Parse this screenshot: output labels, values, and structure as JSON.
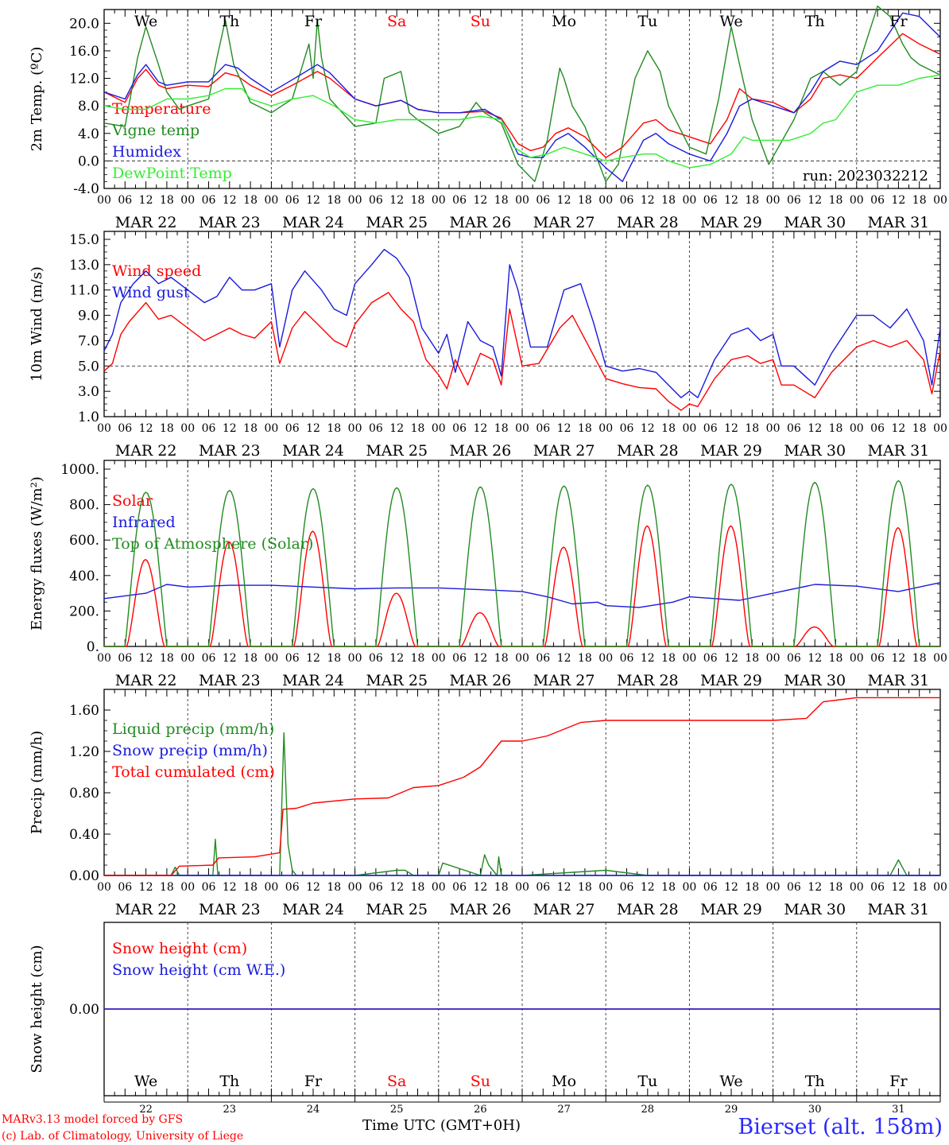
{
  "run_label": "run: 2023032212",
  "station": "Bierset (alt. 158m)",
  "credits": [
    "MARv3.13 model forced by GFS",
    "(c) Lab. of Climatology, University of Liege"
  ],
  "x_axis_title": "Time UTC (GMT+0H)",
  "weekdays": [
    "We",
    "Th",
    "Fr",
    "Sa",
    "Su",
    "Mo",
    "Tu",
    "We",
    "Th",
    "Fr"
  ],
  "weekend_color": "#ff0000",
  "day_numbers": [
    "22",
    "23",
    "24",
    "25",
    "26",
    "27",
    "28",
    "29",
    "30",
    "31"
  ],
  "date_labels": [
    "MAR 22",
    "MAR 23",
    "MAR 24",
    "MAR 25",
    "MAR 26",
    "MAR 27",
    "MAR 28",
    "MAR 29",
    "MAR 30",
    "MAR 31"
  ],
  "hour_ticks": [
    "00",
    "06",
    "12",
    "18"
  ],
  "chart_data": [
    {
      "type": "line",
      "ylabel": "2m Temp. (ºC)",
      "ylim": [
        -4,
        22
      ],
      "yticks": [
        "-4.0",
        "0.0",
        "4.0",
        "8.0",
        "12.0",
        "16.0",
        "20.0"
      ],
      "reference_line": 0,
      "grid": "dashed day separators",
      "legend_position": "left",
      "x_unit": "days since MAR 22 00 UTC",
      "series": [
        {
          "name": "Temperature",
          "color": "#ff0000",
          "x": [
            0,
            0.25,
            0.4,
            0.5,
            0.65,
            0.75,
            1,
            1.25,
            1.45,
            1.6,
            1.75,
            2,
            2.25,
            2.55,
            2.7,
            3,
            3.25,
            3.55,
            3.75,
            4,
            4.25,
            4.55,
            4.75,
            4.95,
            5.1,
            5.25,
            5.4,
            5.55,
            5.75,
            6,
            6.2,
            6.45,
            6.6,
            6.75,
            7,
            7.25,
            7.45,
            7.6,
            7.75,
            8,
            8.25,
            8.45,
            8.6,
            8.8,
            9,
            9.25,
            9.55,
            9.75,
            10
          ],
          "y": [
            10,
            8.5,
            12,
            13.3,
            11,
            10.5,
            11,
            10.8,
            12.8,
            12.3,
            11,
            9.5,
            11,
            13,
            12,
            9,
            8,
            8.8,
            7.5,
            7,
            7,
            7.2,
            6.2,
            2.5,
            1.5,
            2,
            4,
            4.8,
            3.5,
            0.5,
            2,
            5.5,
            6,
            4.5,
            3.5,
            2.5,
            6,
            10.5,
            9,
            8.5,
            7,
            9,
            12,
            12.5,
            12,
            15,
            18.5,
            17,
            15.5
          ]
        },
        {
          "name": "Vigne temp",
          "color": "#228b22",
          "x": [
            0,
            0.25,
            0.4,
            0.5,
            0.65,
            0.75,
            0.9,
            1,
            1.25,
            1.35,
            1.45,
            1.55,
            1.75,
            2,
            2.25,
            2.45,
            2.5,
            2.55,
            2.6,
            2.7,
            3,
            3.25,
            3.35,
            3.55,
            3.65,
            3.75,
            4,
            4.25,
            4.45,
            4.55,
            4.75,
            4.95,
            5.15,
            5.3,
            5.45,
            5.5,
            5.6,
            5.75,
            6,
            6.15,
            6.35,
            6.5,
            6.65,
            6.75,
            7,
            7.2,
            7.35,
            7.5,
            7.6,
            7.75,
            7.95,
            8.25,
            8.45,
            8.6,
            8.8,
            9,
            9.25,
            9.4,
            9.55,
            9.65,
            9.75,
            10
          ],
          "y": [
            5.5,
            5,
            15,
            19.5,
            14,
            10,
            7.5,
            8,
            9,
            15,
            20.5,
            14,
            8.5,
            7,
            9,
            17,
            12,
            20.5,
            15,
            9,
            5,
            5.5,
            12,
            13,
            7,
            6,
            4,
            5,
            8.5,
            7,
            5.5,
            -0.5,
            -3,
            3,
            13.5,
            12,
            8,
            5,
            -3,
            -0.5,
            12,
            16,
            13,
            8,
            2,
            1,
            9,
            19.5,
            14,
            6,
            -0.5,
            6,
            12,
            13,
            11,
            13,
            22.5,
            21,
            17,
            15,
            14,
            12.5
          ]
        },
        {
          "name": "Humidex",
          "color": "#1a1adc",
          "x": [
            0,
            0.25,
            0.4,
            0.5,
            0.65,
            0.75,
            1,
            1.25,
            1.45,
            1.6,
            1.75,
            2,
            2.25,
            2.55,
            2.7,
            3,
            3.25,
            3.55,
            3.75,
            4,
            4.25,
            4.55,
            4.75,
            4.95,
            5.1,
            5.25,
            5.4,
            5.55,
            5.75,
            6,
            6.2,
            6.45,
            6.6,
            6.75,
            7,
            7.25,
            7.45,
            7.6,
            7.75,
            8,
            8.25,
            8.45,
            8.6,
            8.8,
            9,
            9.25,
            9.55,
            9.75,
            10
          ],
          "y": [
            10,
            9,
            12.5,
            14,
            11.5,
            11,
            11.5,
            11.5,
            14,
            13.5,
            12,
            10,
            11.8,
            14,
            12.8,
            9,
            8,
            8.8,
            7.5,
            7,
            7,
            7.5,
            6,
            1,
            0.5,
            0.5,
            3,
            4,
            2,
            -1,
            -3,
            3,
            4,
            2.5,
            1,
            0,
            4,
            8,
            9,
            8,
            7,
            10,
            13,
            14.5,
            14,
            16,
            21.5,
            21,
            18
          ]
        },
        {
          "name": "DewPoint Temp",
          "color": "#33ee33",
          "x": [
            0,
            0.25,
            0.4,
            0.5,
            0.75,
            1,
            1.25,
            1.45,
            1.65,
            1.75,
            2,
            2.25,
            2.5,
            2.75,
            3,
            3.25,
            3.5,
            3.75,
            4,
            4.25,
            4.5,
            4.75,
            4.9,
            5.1,
            5.3,
            5.5,
            5.75,
            6,
            6.2,
            6.45,
            6.6,
            6.75,
            7,
            7.25,
            7.5,
            7.65,
            7.75,
            8,
            8.2,
            8.45,
            8.6,
            8.75,
            9,
            9.25,
            9.5,
            9.75,
            10
          ],
          "y": [
            8,
            7.5,
            7.5,
            7.5,
            9,
            9,
            9.5,
            10.5,
            10.5,
            9,
            8,
            9,
            9.5,
            8,
            6,
            5.5,
            6,
            6,
            6,
            6,
            6.5,
            6,
            2,
            0.5,
            1,
            2,
            1,
            0,
            0.5,
            1,
            1,
            0,
            -1,
            -0.5,
            1,
            3.5,
            3,
            3,
            3,
            4,
            5.5,
            6,
            10,
            11,
            11,
            12,
            12.5
          ]
        }
      ]
    },
    {
      "type": "line",
      "ylabel": "10m Wind (m/s)",
      "ylim": [
        1,
        15
      ],
      "yticks": [
        "1.0",
        "3.0",
        "5.0",
        "7.0",
        "9.0",
        "11.0",
        "13.0",
        "15.0"
      ],
      "reference_line": 5,
      "grid": "dashed day separators",
      "legend_position": "left",
      "x_unit": "days since MAR 22 00 UTC",
      "series": [
        {
          "name": "Wind speed",
          "color": "#ff0000",
          "x": [
            0,
            0.1,
            0.2,
            0.3,
            0.5,
            0.65,
            0.8,
            1,
            1.2,
            1.35,
            1.5,
            1.65,
            1.8,
            2,
            2.1,
            2.25,
            2.4,
            2.6,
            2.75,
            2.9,
            3,
            3.2,
            3.4,
            3.55,
            3.7,
            3.85,
            4,
            4.1,
            4.2,
            4.35,
            4.5,
            4.65,
            4.75,
            4.85,
            5,
            5.2,
            5.45,
            5.6,
            5.8,
            6,
            6.2,
            6.4,
            6.6,
            6.75,
            6.9,
            7,
            7.1,
            7.3,
            7.5,
            7.7,
            7.85,
            8,
            8.1,
            8.25,
            8.5,
            8.7,
            8.85,
            9,
            9.2,
            9.4,
            9.6,
            9.8,
            9.9,
            10
          ],
          "y": [
            4.6,
            5.2,
            7.5,
            8.5,
            10,
            8.7,
            9,
            8,
            7,
            7.5,
            8,
            7.5,
            7.2,
            8.5,
            5.2,
            8,
            9.3,
            8,
            7,
            6.5,
            8.3,
            10,
            10.8,
            9.5,
            8.5,
            5.5,
            4.3,
            3.2,
            5.5,
            3.5,
            6,
            5.5,
            3.5,
            9.5,
            5,
            5.2,
            8,
            9,
            6.5,
            4,
            3.6,
            3.3,
            3.2,
            2.2,
            1.5,
            2,
            1.8,
            4,
            5.5,
            5.8,
            5.2,
            5.5,
            3.5,
            3.5,
            2.5,
            4.5,
            5.5,
            6.5,
            7,
            6.5,
            7,
            5.5,
            2.8,
            6.2
          ]
        },
        {
          "name": "Wind gust",
          "color": "#1a1adc",
          "x": [
            0,
            0.1,
            0.2,
            0.35,
            0.5,
            0.65,
            0.8,
            1,
            1.2,
            1.35,
            1.5,
            1.65,
            1.8,
            2,
            2.1,
            2.25,
            2.4,
            2.6,
            2.75,
            2.9,
            3,
            3.2,
            3.35,
            3.5,
            3.65,
            3.8,
            3.9,
            4,
            4.1,
            4.2,
            4.35,
            4.5,
            4.65,
            4.75,
            4.85,
            4.95,
            5.1,
            5.3,
            5.5,
            5.7,
            5.85,
            6,
            6.2,
            6.4,
            6.6,
            6.75,
            6.9,
            7,
            7.1,
            7.3,
            7.5,
            7.7,
            7.85,
            8,
            8.1,
            8.25,
            8.5,
            8.7,
            8.85,
            9,
            9.2,
            9.4,
            9.6,
            9.8,
            9.9,
            10
          ],
          "y": [
            6.2,
            7.5,
            10,
            11.5,
            12.5,
            11.5,
            12,
            11,
            10,
            10.5,
            12,
            11,
            11,
            11.5,
            6.5,
            11,
            12.5,
            11,
            9.5,
            9,
            11.5,
            13,
            14.2,
            13.5,
            12,
            8,
            7,
            6,
            7.5,
            4.5,
            8.5,
            7,
            6.5,
            4.2,
            13,
            11,
            6.5,
            6.5,
            11,
            11.5,
            8.5,
            5,
            4.6,
            4.8,
            4.5,
            3.5,
            2.5,
            3,
            2.5,
            5.5,
            7.5,
            8,
            7,
            7.5,
            5,
            5,
            3.5,
            6,
            7.5,
            9,
            9,
            8,
            9.5,
            7,
            3.5,
            8
          ]
        }
      ]
    },
    {
      "type": "line",
      "ylabel": "Energy fluxes (W/m2)",
      "ylim": [
        0,
        1000
      ],
      "yticks": [
        "0.",
        "200.",
        "400.",
        "600.",
        "800.",
        "1000."
      ],
      "grid": "dashed day separators",
      "legend_position": "left",
      "x_unit": "days since MAR 22 00 UTC",
      "series": [
        {
          "name": "Solar",
          "color": "#ff0000",
          "peaks": [
            490,
            590,
            650,
            300,
            190,
            560,
            680,
            680,
            110,
            670
          ]
        },
        {
          "name": "Infrared",
          "color": "#1a1adc",
          "x": [
            0,
            0.5,
            0.75,
            1,
            1.5,
            2,
            2.5,
            3,
            3.5,
            4,
            4.5,
            5,
            5.3,
            5.6,
            5.9,
            6,
            6.4,
            6.8,
            7,
            7.3,
            7.6,
            8,
            8.5,
            9,
            9.5,
            10
          ],
          "y": [
            270,
            300,
            350,
            335,
            345,
            345,
            335,
            325,
            330,
            330,
            320,
            310,
            280,
            240,
            250,
            230,
            220,
            250,
            280,
            270,
            260,
            300,
            350,
            340,
            310,
            360
          ]
        },
        {
          "name": "Top of Atmosphere (Solar)",
          "color": "#228b22",
          "peaks": [
            870,
            880,
            890,
            895,
            900,
            905,
            910,
            915,
            925,
            935
          ]
        }
      ]
    },
    {
      "type": "line",
      "ylabel": "Precip (mm/h)",
      "ylim": [
        0,
        1.8
      ],
      "yticks": [
        "0.00",
        "0.40",
        "0.80",
        "1.20",
        "1.60"
      ],
      "grid": "dashed day separators",
      "legend_position": "left",
      "x_unit": "days since MAR 22 00 UTC",
      "series": [
        {
          "name": "Liquid precip (mm/h)",
          "color": "#228b22",
          "x": [
            0,
            0.8,
            0.85,
            0.9,
            1.3,
            1.33,
            1.36,
            2.1,
            2.15,
            2.2,
            2.25,
            2.3,
            3,
            3.5,
            3.6,
            3.7,
            4.0,
            4.05,
            4.5,
            4.55,
            4.6,
            4.7,
            4.72,
            4.75,
            5,
            6,
            6.5,
            7,
            9.4,
            9.5,
            9.6,
            10
          ],
          "y": [
            0,
            0,
            0.08,
            0,
            0,
            0.35,
            0,
            0,
            1.38,
            0.3,
            0.05,
            0,
            0,
            0.05,
            0.05,
            0,
            0,
            0.12,
            0,
            0.2,
            0.1,
            0,
            0.18,
            0,
            0,
            0.05,
            0,
            0,
            0,
            0.15,
            0,
            0
          ]
        },
        {
          "name": "Snow precip (mm/h)",
          "color": "#1a1adc",
          "x": [
            0,
            10
          ],
          "y": [
            0,
            0
          ]
        },
        {
          "name": "Total cumulated (cm)",
          "color": "#ff0000",
          "x": [
            0,
            0.8,
            0.9,
            1.3,
            1.37,
            1.8,
            2.1,
            2.14,
            2.3,
            2.5,
            3,
            3.4,
            3.7,
            4,
            4.3,
            4.5,
            4.75,
            5,
            5.3,
            5.7,
            6,
            7,
            8,
            8.4,
            8.6,
            8.8,
            9,
            10
          ],
          "y": [
            0,
            0,
            0.09,
            0.1,
            0.17,
            0.18,
            0.22,
            0.64,
            0.65,
            0.7,
            0.74,
            0.75,
            0.85,
            0.87,
            0.95,
            1.05,
            1.3,
            1.3,
            1.35,
            1.48,
            1.5,
            1.5,
            1.5,
            1.52,
            1.68,
            1.7,
            1.72,
            1.72
          ]
        }
      ]
    },
    {
      "type": "line",
      "ylabel": "Snow height (cm)",
      "yticks": [
        "0.00"
      ],
      "grid": "dashed day separators",
      "legend_position": "left",
      "x_unit": "days since MAR 22 00 UTC",
      "series": [
        {
          "name": "Snow height (cm)",
          "color": "#ff0000",
          "x": [
            0,
            10
          ],
          "y": [
            0,
            0
          ]
        },
        {
          "name": "Snow height (cm W.E.)",
          "color": "#1a1adc",
          "x": [
            0,
            10
          ],
          "y": [
            0,
            0
          ]
        }
      ]
    }
  ]
}
